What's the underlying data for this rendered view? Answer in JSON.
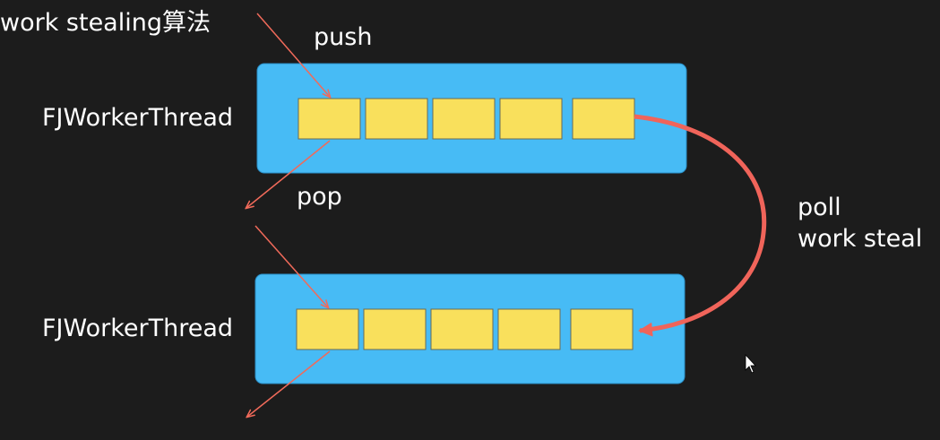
{
  "heading": "work stealing算法",
  "threads": [
    {
      "label": "FJWorkerThread",
      "in_label": "push",
      "out_label": "pop"
    },
    {
      "label": "FJWorkerThread"
    }
  ],
  "steal": {
    "lines": [
      "poll",
      "work steal"
    ]
  }
}
